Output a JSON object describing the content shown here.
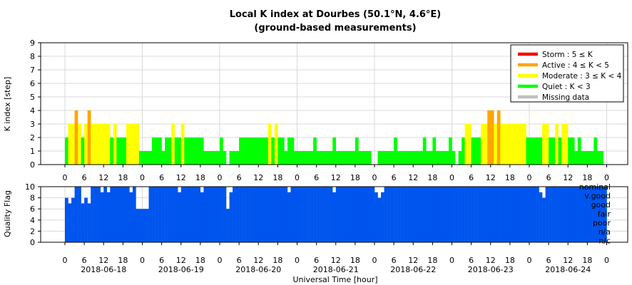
{
  "chart_data": [
    {
      "type": "bar",
      "title": "Local K index at Dourbes (50.1°N, 4.6°E)",
      "subtitle": "(ground-based measurements)",
      "xlabel": "",
      "ylabel": "K index [step]",
      "ylim": [
        0,
        9
      ],
      "yticks": [
        0,
        1,
        2,
        3,
        4,
        5,
        6,
        7,
        8,
        9
      ],
      "xticklabels": [
        "0",
        "6",
        "12",
        "18"
      ],
      "grid": true,
      "legend_position": "top-right",
      "legend": [
        {
          "label": "Storm : 5 ≤ K",
          "color": "#ff0000"
        },
        {
          "label": "Active : 4 ≤ K < 5",
          "color": "#ffa500"
        },
        {
          "label": "Moderate : 3 ≤ K < 4",
          "color": "#ffff00"
        },
        {
          "label": "Quiet : K < 3",
          "color": "#00ff00"
        },
        {
          "label": "Missing data",
          "color": "#c0c0c0"
        }
      ],
      "bin_hours": 1,
      "start": "2018-06-18 00:00 UT",
      "series": [
        {
          "date": "2018-06-18",
          "k": [
            2,
            3,
            3,
            4,
            3,
            2,
            3,
            4,
            3,
            3,
            3,
            3,
            3,
            3,
            2,
            3,
            2,
            2,
            2,
            3,
            3,
            3,
            3,
            1
          ]
        },
        {
          "date": "2018-06-19",
          "k": [
            1,
            1,
            1,
            2,
            2,
            2,
            1,
            2,
            2,
            3,
            2,
            2,
            3,
            2,
            2,
            2,
            2,
            2,
            2,
            1,
            1,
            1,
            1,
            1
          ]
        },
        {
          "date": "2018-06-20",
          "k": [
            2,
            1,
            0,
            1,
            1,
            1,
            2,
            2,
            2,
            2,
            2,
            2,
            2,
            2,
            2,
            3,
            2,
            3,
            2,
            2,
            1,
            2,
            2,
            1
          ]
        },
        {
          "date": "2018-06-21",
          "k": [
            1,
            1,
            1,
            1,
            1,
            2,
            1,
            1,
            1,
            1,
            1,
            2,
            1,
            1,
            1,
            1,
            1,
            1,
            2,
            1,
            1,
            1,
            1,
            0
          ]
        },
        {
          "date": "2018-06-22",
          "k": [
            0,
            1,
            1,
            1,
            1,
            1,
            2,
            1,
            1,
            1,
            1,
            1,
            1,
            1,
            1,
            2,
            1,
            1,
            2,
            1,
            1,
            1,
            1,
            2
          ]
        },
        {
          "date": "2018-06-23",
          "k": [
            1,
            0,
            1,
            2,
            3,
            3,
            2,
            2,
            2,
            3,
            3,
            4,
            4,
            3,
            4,
            3,
            3,
            3,
            3,
            3,
            3,
            3,
            3,
            2
          ]
        },
        {
          "date": "2018-06-24",
          "k": [
            2,
            2,
            2,
            2,
            3,
            3,
            2,
            2,
            3,
            2,
            3,
            3,
            2,
            2,
            1,
            2,
            1,
            1,
            1,
            1,
            2,
            1,
            1,
            0
          ]
        }
      ]
    },
    {
      "type": "bar",
      "title": "",
      "xlabel": "Universal Time [hour]",
      "ylabel": "Quality Flag",
      "ylim": [
        0,
        10
      ],
      "yticks": [
        0,
        2,
        4,
        6,
        8,
        10
      ],
      "color": "#0055ee",
      "category_labels": [
        "nominal",
        "v.good",
        "good",
        "fair",
        "poor",
        "n/a",
        "n/c"
      ],
      "xticklabels": [
        "0",
        "6",
        "12",
        "18"
      ],
      "date_labels": [
        "2018-06-18",
        "2018-06-19",
        "2018-06-20",
        "2018-06-21",
        "2018-06-22",
        "2018-06-23",
        "2018-06-24"
      ],
      "bin_hours": 1,
      "series": [
        {
          "date": "2018-06-18",
          "q": [
            8,
            7,
            8,
            10,
            10,
            7,
            8,
            7,
            10,
            10,
            10,
            9,
            10,
            9,
            10,
            10,
            10,
            10,
            10,
            10,
            9,
            10,
            6,
            6
          ]
        },
        {
          "date": "2018-06-19",
          "q": [
            6,
            6,
            10,
            10,
            10,
            10,
            10,
            10,
            10,
            10,
            10,
            9,
            10,
            10,
            10,
            10,
            10,
            10,
            9,
            10,
            10,
            10,
            10,
            10
          ]
        },
        {
          "date": "2018-06-20",
          "q": [
            10,
            10,
            6,
            9,
            10,
            10,
            10,
            10,
            10,
            10,
            10,
            10,
            10,
            10,
            10,
            10,
            10,
            10,
            10,
            10,
            10,
            9,
            10,
            10
          ]
        },
        {
          "date": "2018-06-21",
          "q": [
            10,
            10,
            10,
            10,
            10,
            10,
            10,
            10,
            10,
            10,
            10,
            9,
            10,
            10,
            10,
            10,
            10,
            10,
            10,
            10,
            10,
            10,
            10,
            10
          ]
        },
        {
          "date": "2018-06-22",
          "q": [
            9,
            8,
            9,
            10,
            10,
            10,
            10,
            10,
            10,
            10,
            10,
            10,
            10,
            10,
            10,
            10,
            10,
            10,
            10,
            10,
            10,
            10,
            10,
            10
          ]
        },
        {
          "date": "2018-06-23",
          "q": [
            10,
            10,
            10,
            10,
            10,
            10,
            10,
            10,
            10,
            10,
            10,
            10,
            10,
            10,
            10,
            10,
            10,
            10,
            10,
            10,
            10,
            10,
            10,
            10
          ]
        },
        {
          "date": "2018-06-24",
          "q": [
            10,
            10,
            10,
            9,
            8,
            10,
            10,
            10,
            10,
            10,
            10,
            10,
            10,
            10,
            10,
            10,
            10,
            10,
            10,
            10,
            10,
            10,
            10,
            10
          ]
        }
      ]
    }
  ]
}
